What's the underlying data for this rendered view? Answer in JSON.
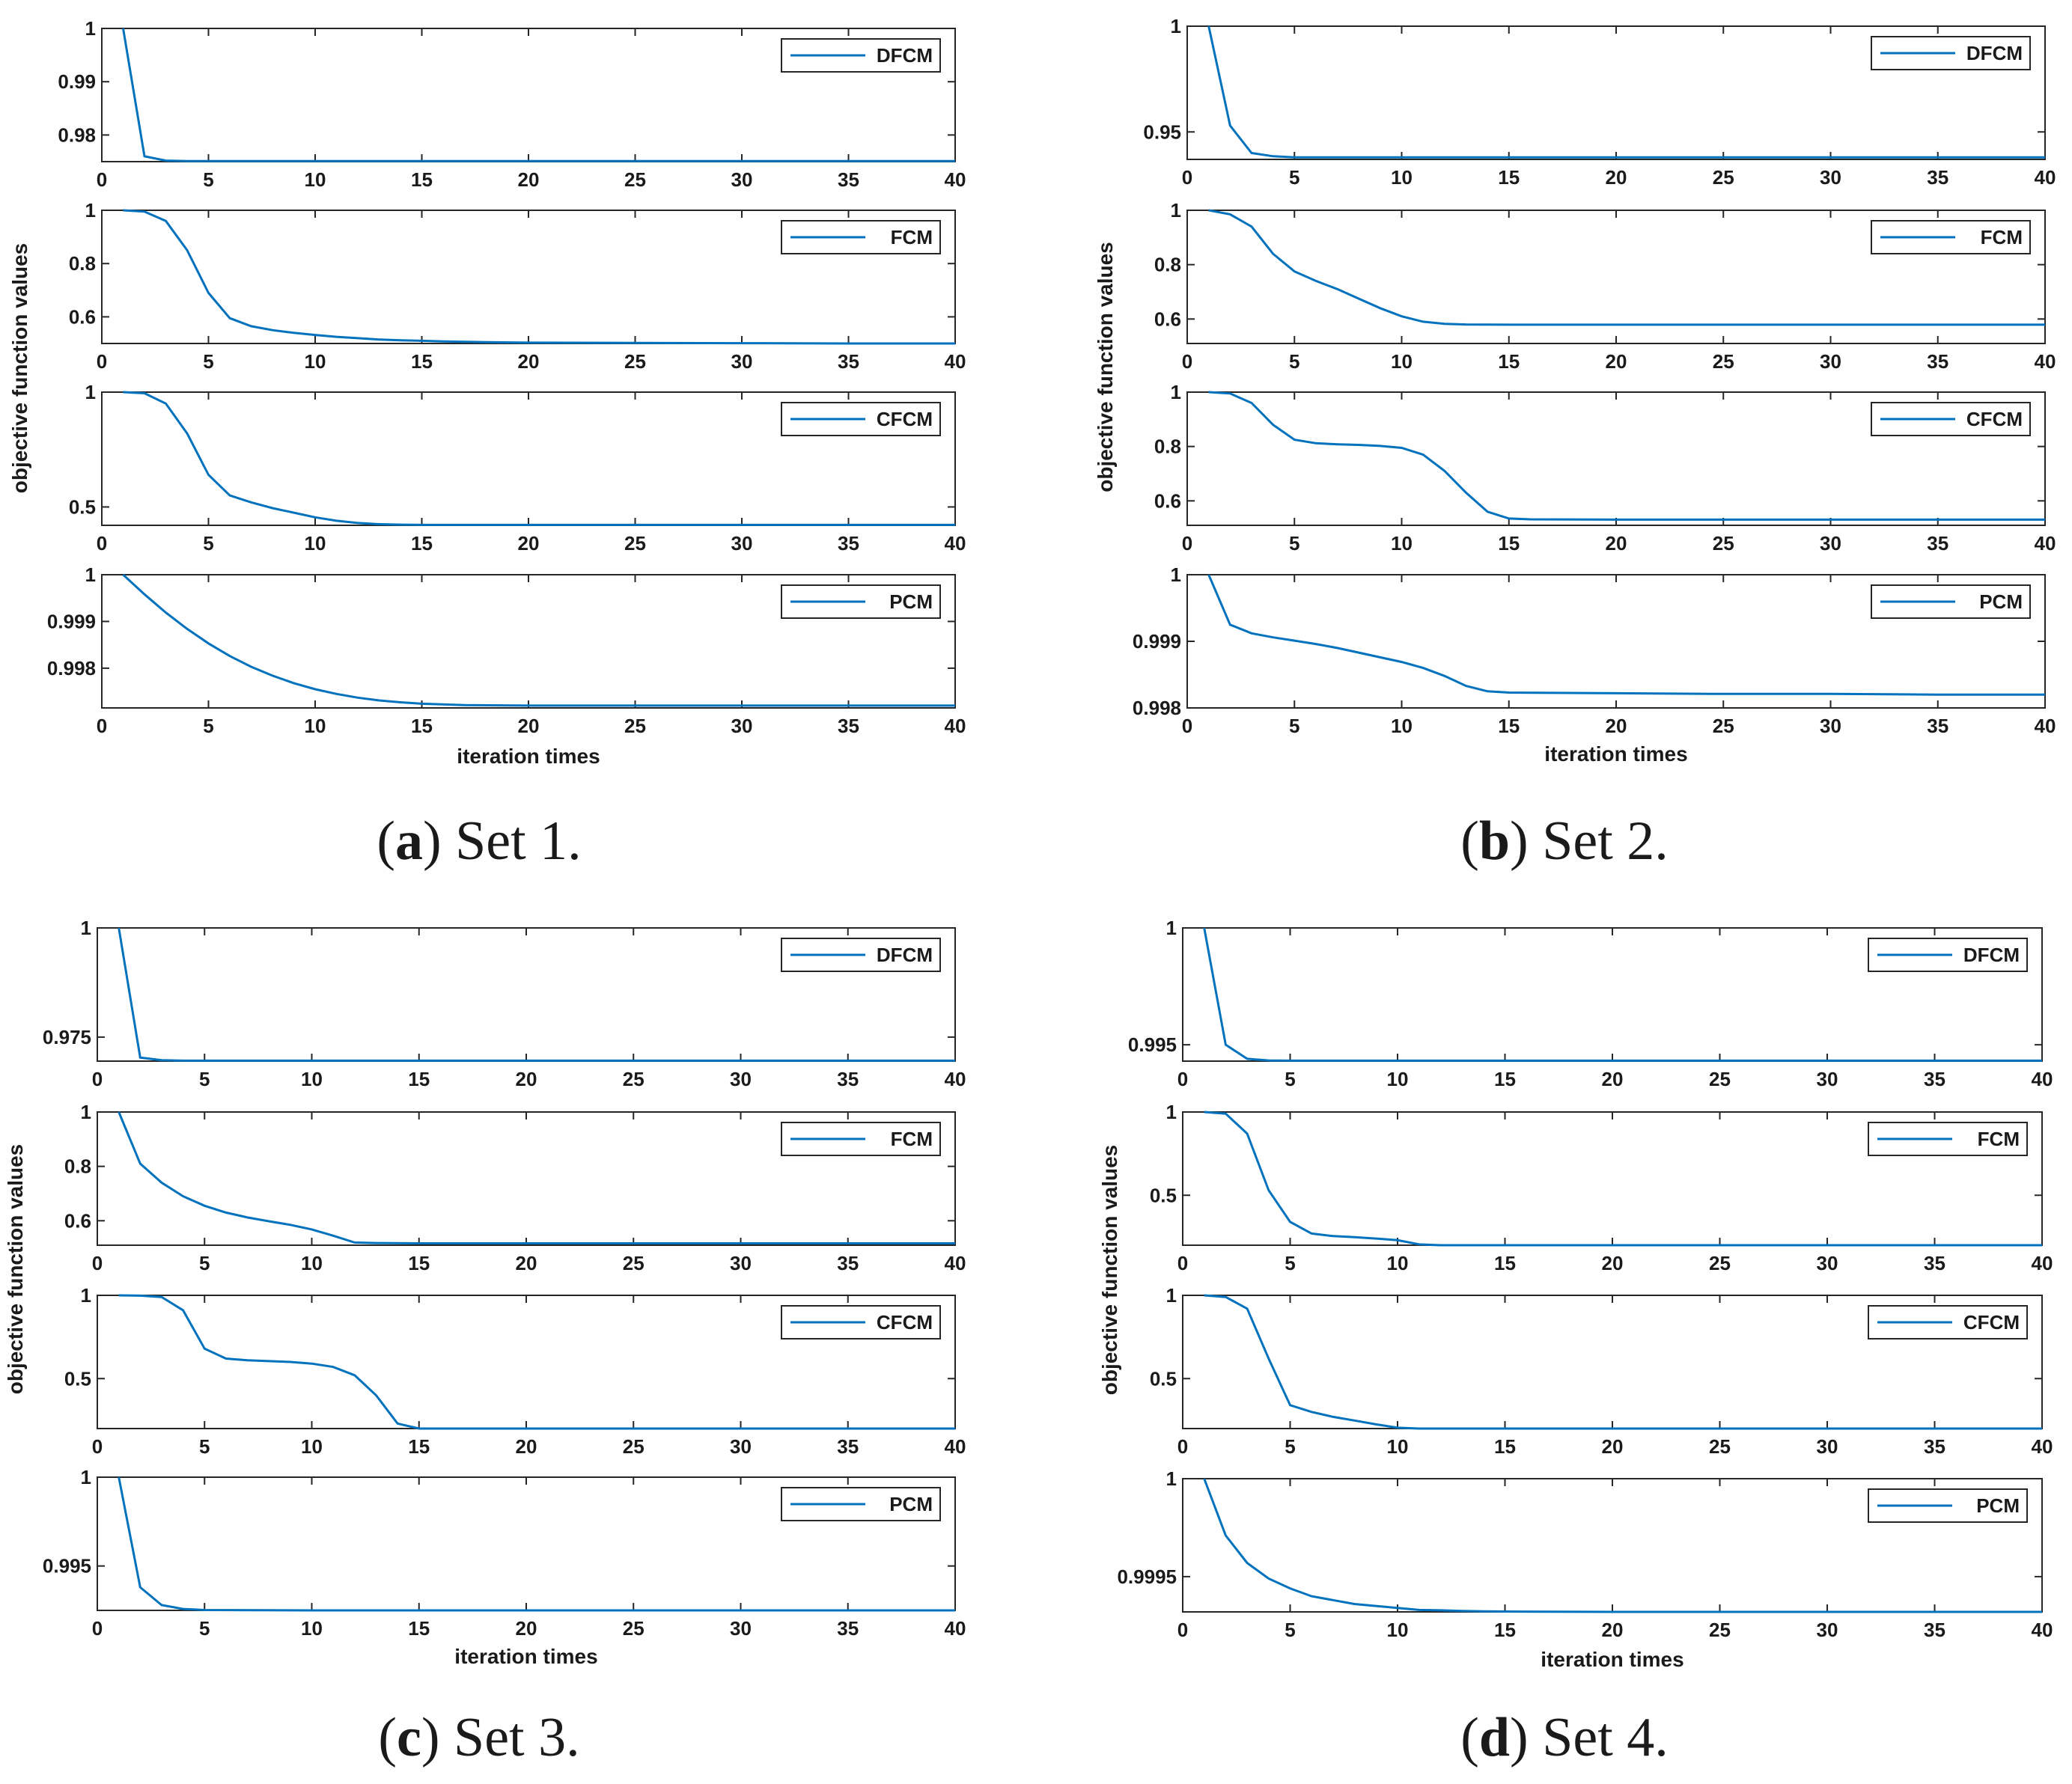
{
  "colors": {
    "line": "#0072BD",
    "axis": "#262626"
  },
  "chart_data": [
    {
      "caption": {
        "letter": "a",
        "text": "Set 1."
      },
      "xlabel": "iteration times",
      "ylabel": "objective function values",
      "xticks": [
        0,
        5,
        10,
        15,
        20,
        25,
        30,
        35,
        40
      ],
      "panels": [
        {
          "type": "line",
          "legend": "DFCM",
          "ylim": [
            0.975,
            1.0
          ],
          "yticks": [
            0.98,
            0.99,
            1
          ],
          "yticklabels": [
            "0.98",
            "0.99",
            "1"
          ],
          "x": [
            1,
            2,
            3,
            4,
            5,
            10,
            15,
            20,
            25,
            30,
            35,
            40
          ],
          "y": [
            1.0,
            0.976,
            0.9752,
            0.9751,
            0.9751,
            0.9751,
            0.9751,
            0.9751,
            0.9751,
            0.9751,
            0.9751,
            0.9751
          ]
        },
        {
          "type": "line",
          "legend": "FCM",
          "ylim": [
            0.5,
            1.0
          ],
          "yticks": [
            0.6,
            0.8,
            1
          ],
          "yticklabels": [
            "0.6",
            "0.8",
            "1"
          ],
          "x": [
            1,
            2,
            3,
            4,
            5,
            6,
            7,
            8,
            9,
            10,
            11,
            12,
            13,
            14,
            15,
            16,
            18,
            20,
            25,
            30,
            35,
            40
          ],
          "y": [
            1.0,
            0.995,
            0.96,
            0.85,
            0.69,
            0.595,
            0.565,
            0.55,
            0.54,
            0.532,
            0.525,
            0.52,
            0.515,
            0.512,
            0.51,
            0.508,
            0.505,
            0.503,
            0.502,
            0.501,
            0.5,
            0.5
          ]
        },
        {
          "type": "line",
          "legend": "CFCM",
          "ylim": [
            0.42,
            1.0
          ],
          "yticks": [
            0.5,
            1
          ],
          "yticklabels": [
            "0.5",
            "1"
          ],
          "x": [
            1,
            2,
            3,
            4,
            5,
            6,
            7,
            8,
            9,
            10,
            11,
            12,
            13,
            14,
            15,
            20,
            25,
            30,
            35,
            40
          ],
          "y": [
            1.0,
            0.995,
            0.95,
            0.82,
            0.64,
            0.55,
            0.52,
            0.495,
            0.475,
            0.455,
            0.44,
            0.43,
            0.425,
            0.423,
            0.422,
            0.422,
            0.422,
            0.422,
            0.422,
            0.422
          ]
        },
        {
          "type": "line",
          "legend": "PCM",
          "ylim": [
            0.99715,
            1.0
          ],
          "yticks": [
            0.998,
            0.999,
            1
          ],
          "yticklabels": [
            "0.998",
            "0.999",
            "1"
          ],
          "x": [
            1,
            2,
            3,
            4,
            5,
            6,
            7,
            8,
            9,
            10,
            11,
            12,
            13,
            14,
            15,
            17,
            20,
            25,
            30,
            35,
            40
          ],
          "y": [
            1.0,
            0.99958,
            0.99919,
            0.99884,
            0.99853,
            0.99826,
            0.99803,
            0.99784,
            0.99768,
            0.99755,
            0.99745,
            0.99737,
            0.99731,
            0.99727,
            0.99724,
            0.99721,
            0.9972,
            0.9972,
            0.9972,
            0.9972,
            0.9972
          ]
        }
      ]
    },
    {
      "caption": {
        "letter": "b",
        "text": "Set 2."
      },
      "xlabel": "iteration times",
      "ylabel": "objective function values",
      "xticks": [
        0,
        5,
        10,
        15,
        20,
        25,
        30,
        35,
        40
      ],
      "panels": [
        {
          "type": "line",
          "legend": "DFCM",
          "ylim": [
            0.937,
            1.0
          ],
          "yticks": [
            0.95,
            1
          ],
          "yticklabels": [
            "0.95",
            "1"
          ],
          "x": [
            1,
            2,
            3,
            4,
            5,
            10,
            15,
            20,
            25,
            30,
            35,
            40
          ],
          "y": [
            1.0,
            0.953,
            0.94,
            0.9385,
            0.938,
            0.938,
            0.938,
            0.938,
            0.938,
            0.938,
            0.938,
            0.938
          ]
        },
        {
          "type": "line",
          "legend": "FCM",
          "ylim": [
            0.51,
            1.0
          ],
          "yticks": [
            0.6,
            0.8,
            1
          ],
          "yticklabels": [
            "0.6",
            "0.8",
            "1"
          ],
          "x": [
            1,
            2,
            3,
            4,
            5,
            6,
            7,
            8,
            9,
            10,
            11,
            12,
            13,
            15,
            20,
            25,
            30,
            35,
            40
          ],
          "y": [
            1.0,
            0.985,
            0.94,
            0.84,
            0.775,
            0.74,
            0.71,
            0.675,
            0.64,
            0.61,
            0.59,
            0.582,
            0.58,
            0.579,
            0.579,
            0.579,
            0.579,
            0.579,
            0.579
          ]
        },
        {
          "type": "line",
          "legend": "CFCM",
          "ylim": [
            0.51,
            1.0
          ],
          "yticks": [
            0.6,
            0.8,
            1
          ],
          "yticklabels": [
            "0.6",
            "0.8",
            "1"
          ],
          "x": [
            1,
            2,
            3,
            4,
            5,
            6,
            7,
            8,
            9,
            10,
            11,
            12,
            13,
            14,
            15,
            16,
            20,
            25,
            30,
            35,
            40
          ],
          "y": [
            1.0,
            0.995,
            0.96,
            0.88,
            0.825,
            0.812,
            0.808,
            0.806,
            0.802,
            0.795,
            0.77,
            0.71,
            0.63,
            0.56,
            0.535,
            0.532,
            0.531,
            0.531,
            0.531,
            0.531,
            0.531
          ]
        },
        {
          "type": "line",
          "legend": "PCM",
          "ylim": [
            0.998,
            1.0
          ],
          "yticks": [
            0.998,
            0.999,
            1
          ],
          "yticklabels": [
            "0.998",
            "0.999",
            "1"
          ],
          "x": [
            1,
            2,
            3,
            4,
            5,
            6,
            7,
            8,
            9,
            10,
            11,
            12,
            13,
            14,
            15,
            20,
            25,
            30,
            35,
            40
          ],
          "y": [
            1.0,
            0.99925,
            0.99912,
            0.99906,
            0.99901,
            0.99896,
            0.9989,
            0.99883,
            0.99876,
            0.99869,
            0.9986,
            0.99848,
            0.99833,
            0.99825,
            0.99823,
            0.99822,
            0.99821,
            0.99821,
            0.9982,
            0.9982
          ]
        }
      ]
    },
    {
      "caption": {
        "letter": "c",
        "text": "Set 3."
      },
      "xlabel": "iteration times",
      "ylabel": "objective function values",
      "xticks": [
        0,
        5,
        10,
        15,
        20,
        25,
        30,
        35,
        40
      ],
      "panels": [
        {
          "type": "line",
          "legend": "DFCM",
          "ylim": [
            0.9695,
            1.0
          ],
          "yticks": [
            0.975,
            1
          ],
          "yticklabels": [
            "0.975",
            "1"
          ],
          "x": [
            1,
            2,
            3,
            4,
            5,
            10,
            15,
            20,
            25,
            30,
            35,
            40
          ],
          "y": [
            1.0,
            0.9703,
            0.9697,
            0.9696,
            0.9696,
            0.9696,
            0.9696,
            0.9696,
            0.9696,
            0.9696,
            0.9696,
            0.9696
          ]
        },
        {
          "type": "line",
          "legend": "FCM",
          "ylim": [
            0.51,
            1.0
          ],
          "yticks": [
            0.6,
            0.8,
            1
          ],
          "yticklabels": [
            "0.6",
            "0.8",
            "1"
          ],
          "x": [
            1,
            2,
            3,
            4,
            5,
            6,
            7,
            8,
            9,
            10,
            11,
            12,
            13,
            15,
            20,
            25,
            30,
            35,
            40
          ],
          "y": [
            1.0,
            0.81,
            0.74,
            0.69,
            0.655,
            0.63,
            0.612,
            0.598,
            0.585,
            0.568,
            0.545,
            0.52,
            0.518,
            0.517,
            0.517,
            0.517,
            0.517,
            0.517,
            0.517
          ]
        },
        {
          "type": "line",
          "legend": "CFCM",
          "ylim": [
            0.2,
            1.0
          ],
          "yticks": [
            0.5,
            1
          ],
          "yticklabels": [
            "0.5",
            "1"
          ],
          "x": [
            1,
            2,
            3,
            4,
            5,
            6,
            7,
            8,
            9,
            10,
            11,
            12,
            13,
            14,
            15,
            20,
            25,
            30,
            35,
            40
          ],
          "y": [
            1.0,
            0.998,
            0.99,
            0.91,
            0.68,
            0.62,
            0.61,
            0.605,
            0.6,
            0.59,
            0.57,
            0.52,
            0.4,
            0.23,
            0.2,
            0.2,
            0.2,
            0.2,
            0.2,
            0.2
          ]
        },
        {
          "type": "line",
          "legend": "PCM",
          "ylim": [
            0.9925,
            1.0
          ],
          "yticks": [
            0.995,
            1
          ],
          "yticklabels": [
            "0.995",
            "1"
          ],
          "x": [
            1,
            2,
            3,
            4,
            5,
            10,
            15,
            20,
            25,
            30,
            35,
            40
          ],
          "y": [
            1.0,
            0.9938,
            0.9928,
            0.99258,
            0.99252,
            0.9925,
            0.9925,
            0.9925,
            0.9925,
            0.9925,
            0.9925,
            0.9925
          ]
        }
      ]
    },
    {
      "caption": {
        "letter": "d",
        "text": "Set 4."
      },
      "xlabel": "iteration times",
      "ylabel": "objective function values",
      "xticks": [
        0,
        5,
        10,
        15,
        20,
        25,
        30,
        35,
        40
      ],
      "panels": [
        {
          "type": "line",
          "legend": "DFCM",
          "ylim": [
            0.9943,
            1.0
          ],
          "yticks": [
            0.995,
            1
          ],
          "yticklabels": [
            "0.995",
            "1"
          ],
          "x": [
            1,
            2,
            3,
            4,
            5,
            10,
            15,
            20,
            25,
            30,
            35,
            40
          ],
          "y": [
            1.0,
            0.995,
            0.9944,
            0.99433,
            0.99432,
            0.99432,
            0.99432,
            0.99432,
            0.99432,
            0.99432,
            0.99432,
            0.99432
          ]
        },
        {
          "type": "line",
          "legend": "FCM",
          "ylim": [
            0.2,
            1.0
          ],
          "yticks": [
            0.5,
            1
          ],
          "yticklabels": [
            "0.5",
            "1"
          ],
          "x": [
            1,
            2,
            3,
            4,
            5,
            6,
            7,
            8,
            9,
            10,
            11,
            12,
            15,
            20,
            25,
            30,
            35,
            40
          ],
          "y": [
            1.0,
            0.99,
            0.87,
            0.53,
            0.34,
            0.27,
            0.255,
            0.248,
            0.24,
            0.23,
            0.205,
            0.2,
            0.2,
            0.2,
            0.2,
            0.2,
            0.2,
            0.2
          ]
        },
        {
          "type": "line",
          "legend": "CFCM",
          "ylim": [
            0.2,
            1.0
          ],
          "yticks": [
            0.5,
            1
          ],
          "yticklabels": [
            "0.5",
            "1"
          ],
          "x": [
            1,
            2,
            3,
            4,
            5,
            6,
            7,
            8,
            9,
            10,
            11,
            15,
            20,
            25,
            30,
            35,
            40
          ],
          "y": [
            1.0,
            0.99,
            0.92,
            0.62,
            0.34,
            0.3,
            0.27,
            0.248,
            0.225,
            0.205,
            0.2,
            0.2,
            0.2,
            0.2,
            0.2,
            0.2,
            0.2
          ]
        },
        {
          "type": "line",
          "legend": "PCM",
          "ylim": [
            0.99932,
            1.0
          ],
          "yticks": [
            0.9995,
            1
          ],
          "yticklabels": [
            "0.9995",
            "1"
          ],
          "x": [
            1,
            2,
            3,
            4,
            5,
            6,
            7,
            8,
            9,
            10,
            11,
            12,
            13,
            14,
            15,
            20,
            25,
            30,
            35,
            40
          ],
          "y": [
            1.0,
            0.99971,
            0.99957,
            0.99949,
            0.99944,
            0.9994,
            0.99938,
            0.99936,
            0.99935,
            0.99934,
            0.99933,
            0.999328,
            0.999325,
            0.999323,
            0.999322,
            0.99932,
            0.99932,
            0.99932,
            0.99932,
            0.99932
          ]
        }
      ]
    }
  ]
}
